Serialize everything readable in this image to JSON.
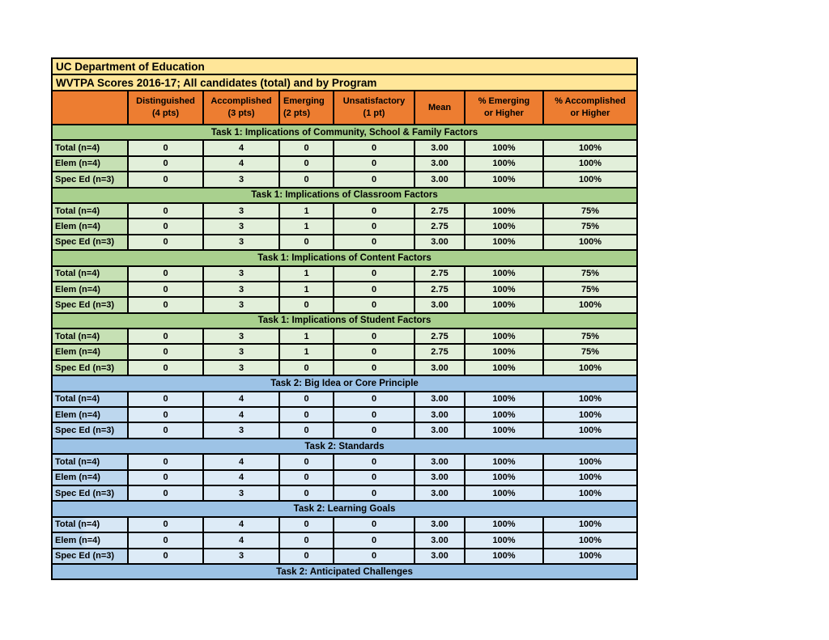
{
  "canvas": {
    "background": "#ffffff"
  },
  "report": {
    "title_line1": "UC Department of Education",
    "title_line2": "WVTPA Scores 2016-17; All candidates (total) and by Program",
    "header": {
      "corner": "",
      "columns": [
        {
          "line1": "Distinguished",
          "line2": "(4 pts)",
          "align": "center"
        },
        {
          "line1": "Accomplished",
          "line2": "(3 pts)",
          "align": "center"
        },
        {
          "line1": "Emerging",
          "line2": "(2 pts)",
          "align": "left"
        },
        {
          "line1": "Unsatisfactory",
          "line2": "(1 pt)",
          "align": "center"
        },
        {
          "line1": "Mean",
          "line2": "",
          "align": "center"
        },
        {
          "line1": "% Emerging",
          "line2": "or Higher",
          "align": "center"
        },
        {
          "line1": "% Accomplished",
          "line2": "or Higher",
          "align": "center"
        }
      ]
    },
    "sections": [
      {
        "title": "Task 1: Implications of Community, School & Family Factors",
        "theme": "green",
        "rows": [
          {
            "label": "Total (n=4)",
            "values": [
              "0",
              "4",
              "0",
              "0",
              "3.00",
              "100%",
              "100%"
            ]
          },
          {
            "label": "Elem (n=4)",
            "values": [
              "0",
              "4",
              "0",
              "0",
              "3.00",
              "100%",
              "100%"
            ]
          },
          {
            "label": "Spec Ed (n=3)",
            "values": [
              "0",
              "3",
              "0",
              "0",
              "3.00",
              "100%",
              "100%"
            ]
          }
        ]
      },
      {
        "title": "Task 1: Implications of Classroom Factors",
        "theme": "green",
        "rows": [
          {
            "label": "Total (n=4)",
            "values": [
              "0",
              "3",
              "1",
              "0",
              "2.75",
              "100%",
              "75%"
            ]
          },
          {
            "label": "Elem (n=4)",
            "values": [
              "0",
              "3",
              "1",
              "0",
              "2.75",
              "100%",
              "75%"
            ]
          },
          {
            "label": "Spec Ed (n=3)",
            "values": [
              "0",
              "3",
              "0",
              "0",
              "3.00",
              "100%",
              "100%"
            ]
          }
        ]
      },
      {
        "title": "Task 1: Implications of Content Factors",
        "theme": "green",
        "rows": [
          {
            "label": "Total (n=4)",
            "values": [
              "0",
              "3",
              "1",
              "0",
              "2.75",
              "100%",
              "75%"
            ]
          },
          {
            "label": "Elem (n=4)",
            "values": [
              "0",
              "3",
              "1",
              "0",
              "2.75",
              "100%",
              "75%"
            ]
          },
          {
            "label": "Spec Ed (n=3)",
            "values": [
              "0",
              "3",
              "0",
              "0",
              "3.00",
              "100%",
              "100%"
            ]
          }
        ]
      },
      {
        "title": "Task 1: Implications of Student Factors",
        "theme": "green",
        "rows": [
          {
            "label": "Total (n=4)",
            "values": [
              "0",
              "3",
              "1",
              "0",
              "2.75",
              "100%",
              "75%"
            ]
          },
          {
            "label": "Elem (n=4)",
            "values": [
              "0",
              "3",
              "1",
              "0",
              "2.75",
              "100%",
              "75%"
            ]
          },
          {
            "label": "Spec Ed (n=3)",
            "values": [
              "0",
              "3",
              "0",
              "0",
              "3.00",
              "100%",
              "100%"
            ]
          }
        ]
      },
      {
        "title": "Task 2: Big Idea or Core Principle",
        "theme": "blue",
        "rows": [
          {
            "label": "Total (n=4)",
            "values": [
              "0",
              "4",
              "0",
              "0",
              "3.00",
              "100%",
              "100%"
            ]
          },
          {
            "label": "Elem (n=4)",
            "values": [
              "0",
              "4",
              "0",
              "0",
              "3.00",
              "100%",
              "100%"
            ]
          },
          {
            "label": "Spec Ed (n=3)",
            "values": [
              "0",
              "3",
              "0",
              "0",
              "3.00",
              "100%",
              "100%"
            ]
          }
        ]
      },
      {
        "title": "Task 2: Standards",
        "theme": "blue",
        "rows": [
          {
            "label": "Total (n=4)",
            "values": [
              "0",
              "4",
              "0",
              "0",
              "3.00",
              "100%",
              "100%"
            ]
          },
          {
            "label": "Elem (n=4)",
            "values": [
              "0",
              "4",
              "0",
              "0",
              "3.00",
              "100%",
              "100%"
            ]
          },
          {
            "label": "Spec Ed (n=3)",
            "values": [
              "0",
              "3",
              "0",
              "0",
              "3.00",
              "100%",
              "100%"
            ]
          }
        ]
      },
      {
        "title": "Task 2: Learning Goals",
        "theme": "blue",
        "rows": [
          {
            "label": "Total (n=4)",
            "label_tint": true,
            "values": [
              "0",
              "4",
              "0",
              "0",
              "3.00",
              "100%",
              "100%"
            ]
          },
          {
            "label": "Elem (n=4)",
            "label_tint": true,
            "values": [
              "0",
              "4",
              "0",
              "0",
              "3.00",
              "100%",
              "100%"
            ]
          },
          {
            "label": "Spec Ed (n=3)",
            "values": [
              "0",
              "3",
              "0",
              "0",
              "3.00",
              "100%",
              "100%"
            ]
          }
        ]
      },
      {
        "title": "Task 2: Anticipated Challenges",
        "theme": "blue",
        "rows": []
      }
    ],
    "colors": {
      "title_bg": "#FFE699",
      "header_bg": "#ED7D31",
      "green_section": "#A9D08E",
      "green_label": "#C6E0B4",
      "green_cell": "#E2EFDA",
      "blue_section": "#9DC3E6",
      "blue_label": "#BDD7EE",
      "blue_cell": "#DDEBF7",
      "border": "#000000"
    }
  }
}
